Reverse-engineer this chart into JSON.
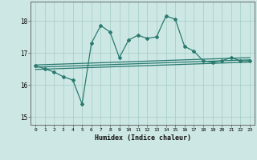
{
  "xlabel": "Humidex (Indice chaleur)",
  "background_color": "#cde8e4",
  "grid_color": "#aacfca",
  "line_color": "#2a7a70",
  "x_data": [
    0,
    1,
    2,
    3,
    4,
    5,
    6,
    7,
    8,
    9,
    10,
    11,
    12,
    13,
    14,
    15,
    16,
    17,
    18,
    19,
    20,
    21,
    22,
    23
  ],
  "y_main": [
    16.6,
    16.5,
    16.4,
    16.25,
    16.15,
    15.4,
    17.3,
    17.85,
    17.65,
    16.85,
    17.4,
    17.55,
    17.45,
    17.5,
    18.15,
    18.05,
    17.2,
    17.05,
    16.75,
    16.7,
    16.75,
    16.85,
    16.75,
    16.75
  ],
  "flat_line1": [
    16.62,
    16.63,
    16.64,
    16.65,
    16.66,
    16.67,
    16.68,
    16.69,
    16.7,
    16.71,
    16.72,
    16.73,
    16.74,
    16.75,
    16.76,
    16.77,
    16.78,
    16.79,
    16.8,
    16.81,
    16.82,
    16.83,
    16.84,
    16.85
  ],
  "flat_line2": [
    16.55,
    16.56,
    16.57,
    16.58,
    16.59,
    16.6,
    16.61,
    16.62,
    16.63,
    16.64,
    16.65,
    16.66,
    16.67,
    16.68,
    16.69,
    16.7,
    16.71,
    16.72,
    16.73,
    16.74,
    16.75,
    16.76,
    16.77,
    16.78
  ],
  "flat_line3": [
    16.48,
    16.49,
    16.5,
    16.51,
    16.52,
    16.53,
    16.54,
    16.55,
    16.56,
    16.57,
    16.58,
    16.59,
    16.6,
    16.61,
    16.62,
    16.63,
    16.64,
    16.65,
    16.66,
    16.67,
    16.68,
    16.69,
    16.7,
    16.71
  ],
  "ylim": [
    14.75,
    18.6
  ],
  "yticks": [
    15,
    16,
    17,
    18
  ],
  "xticks": [
    0,
    1,
    2,
    3,
    4,
    5,
    6,
    7,
    8,
    9,
    10,
    11,
    12,
    13,
    14,
    15,
    16,
    17,
    18,
    19,
    20,
    21,
    22,
    23
  ]
}
